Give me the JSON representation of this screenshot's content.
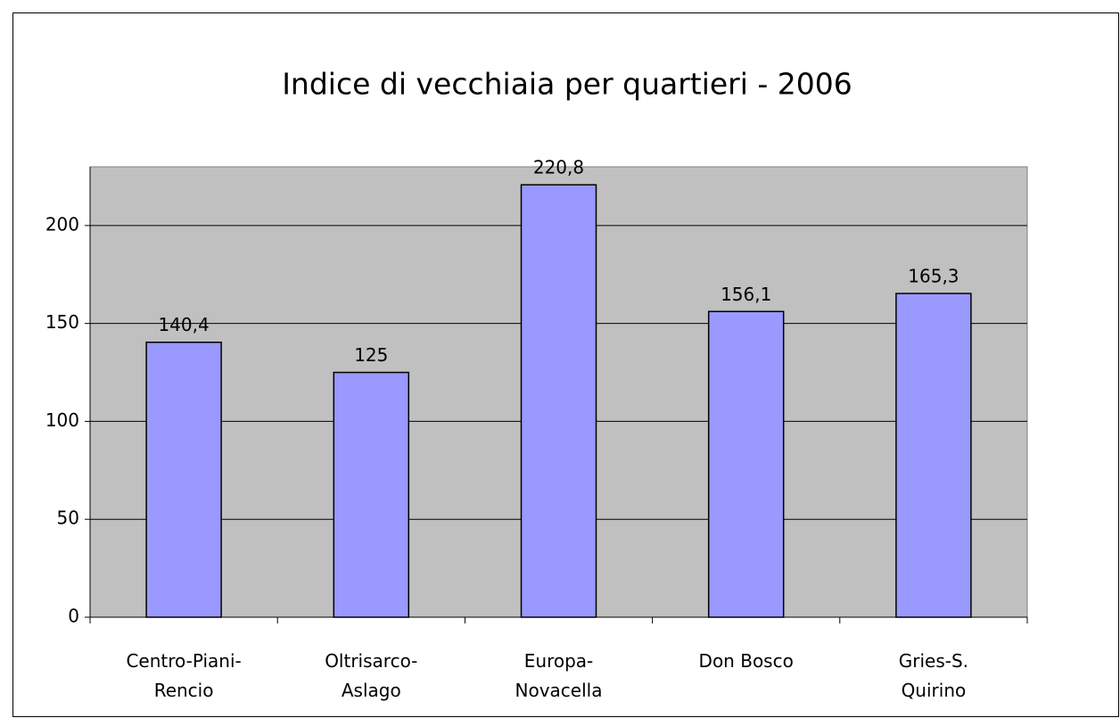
{
  "chart_data": {
    "type": "bar",
    "title": "Indice di vecchiaia per quartieri - 2006",
    "categories": [
      "Centro-Piani-\nRencio",
      "Oltrisarco-\nAslago",
      "Europa-\nNovacella",
      "Don Bosco",
      "Gries-S.\nQuirino"
    ],
    "values": [
      140.4,
      125,
      220.8,
      156.1,
      165.3
    ],
    "value_labels": [
      "140,4",
      "125",
      "220,8",
      "156,1",
      "165,3"
    ],
    "color": "#9999ff",
    "ylim": [
      0,
      230
    ],
    "yticks": [
      0,
      50,
      100,
      150,
      200
    ],
    "grid": true
  }
}
